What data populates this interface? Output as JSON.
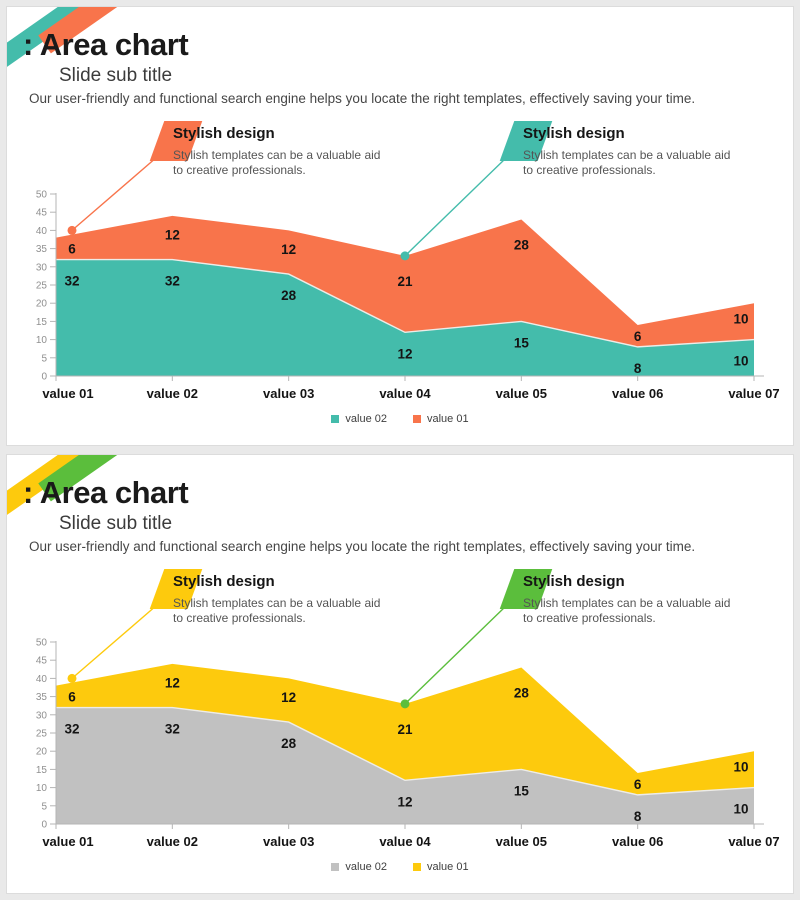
{
  "slide1": {
    "title": ": Area chart",
    "subtitle": "Slide sub title",
    "description": "Our user-friendly and functional search engine helps you locate the right templates, effectively saving your time.",
    "callouts": [
      {
        "title": "Stylish design",
        "body_line1": "Stylish templates can be a valuable aid",
        "body_line2": "to creative professionals."
      },
      {
        "title": "Stylish design",
        "body_line1": "Stylish templates can be a valuable aid",
        "body_line2": "to creative professionals."
      }
    ],
    "legend": [
      {
        "label": "value 02",
        "color": "#44bcab"
      },
      {
        "label": "value 01",
        "color": "#f8744b"
      }
    ],
    "colors": {
      "stripe_left": "#44bcab",
      "stripe_right": "#f8744b",
      "callout1": "#f8744b",
      "callout2": "#44bcab",
      "title_text": "#1a1a1a"
    }
  },
  "slide2": {
    "title": ": Area chart",
    "subtitle": "Slide sub title",
    "description": "Our user-friendly and functional search engine helps you locate the right templates, effectively saving your time.",
    "callouts": [
      {
        "title": "Stylish design",
        "body_line1": "Stylish templates can be a valuable aid",
        "body_line2": "to creative professionals."
      },
      {
        "title": "Stylish design",
        "body_line1": "Stylish templates can be a valuable aid",
        "body_line2": "to creative professionals."
      }
    ],
    "legend": [
      {
        "label": "value 02",
        "color": "#c1c1c1"
      },
      {
        "label": "value 01",
        "color": "#fdca0d"
      }
    ],
    "colors": {
      "stripe_left": "#fdca0d",
      "stripe_right": "#5bbe3c",
      "callout1": "#fdca0d",
      "callout2": "#5bbe3c",
      "title_text": "#1a1a1a"
    }
  },
  "chart_data": [
    {
      "type": "area",
      "stacked": true,
      "title": "",
      "categories": [
        "value 01",
        "value 02",
        "value 03",
        "value 04",
        "value 05",
        "value 06",
        "value 07"
      ],
      "series": [
        {
          "name": "value 02",
          "color": "#44bcab",
          "values": [
            32,
            32,
            28,
            12,
            15,
            8,
            10
          ]
        },
        {
          "name": "value 01",
          "color": "#f8744b",
          "values": [
            6,
            12,
            12,
            21,
            28,
            6,
            10
          ]
        }
      ],
      "stacked_totals": [
        38,
        44,
        40,
        33,
        43,
        14,
        20
      ],
      "show_data_labels": true,
      "ylim": [
        0,
        50
      ],
      "ytick_step": 5,
      "grid": false,
      "legend_position": "bottom",
      "markers": [
        {
          "x_index": 0,
          "x_offset": 16,
          "value": 40
        },
        {
          "x_index": 3,
          "x_offset": 0,
          "value": 33
        }
      ]
    },
    {
      "type": "area",
      "stacked": true,
      "title": "",
      "categories": [
        "value 01",
        "value 02",
        "value 03",
        "value 04",
        "value 05",
        "value 06",
        "value 07"
      ],
      "series": [
        {
          "name": "value 02",
          "color": "#c1c1c1",
          "values": [
            32,
            32,
            28,
            12,
            15,
            8,
            10
          ]
        },
        {
          "name": "value 01",
          "color": "#fdca0d",
          "values": [
            6,
            12,
            12,
            21,
            28,
            6,
            10
          ]
        }
      ],
      "stacked_totals": [
        38,
        44,
        40,
        33,
        43,
        14,
        20
      ],
      "show_data_labels": true,
      "ylim": [
        0,
        50
      ],
      "ytick_step": 5,
      "grid": false,
      "legend_position": "bottom",
      "markers": [
        {
          "x_index": 0,
          "x_offset": 16,
          "value": 40
        },
        {
          "x_index": 3,
          "x_offset": 0,
          "value": 33
        }
      ]
    }
  ]
}
